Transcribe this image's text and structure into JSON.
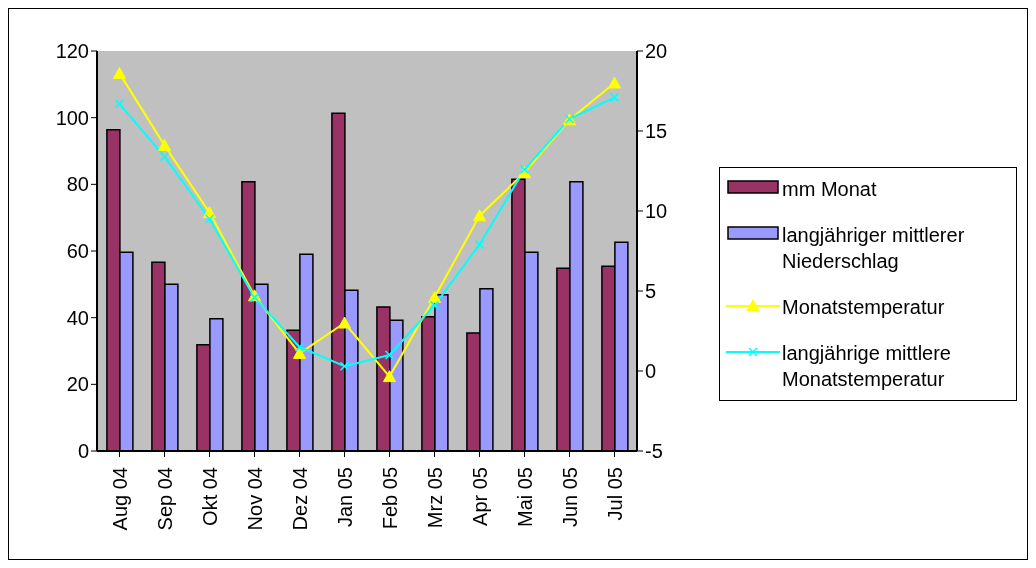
{
  "chart_data": {
    "type": "bar",
    "categories": [
      "Aug 04",
      "Sep 04",
      "Okt 04",
      "Nov 04",
      "Dez 04",
      "Jan 05",
      "Feb 05",
      "Mrz 05",
      "Apr 05",
      "Mai 05",
      "Jun 05",
      "Jul 05"
    ],
    "series": [
      {
        "name": "mm Monat",
        "color": "#993366",
        "values": [
          96.4,
          56.6,
          31.9,
          80.8,
          36.2,
          101.3,
          43.2,
          40.3,
          35.4,
          81.5,
          54.8,
          55.4
        ]
      },
      {
        "name": "langjähriger mittlerer Niederschlag",
        "color": "#9999ff",
        "values": [
          59.6,
          50,
          39.7,
          50,
          59,
          48.2,
          39.2,
          46.9,
          48.7,
          59.6,
          80.8,
          62.6
        ]
      },
      {
        "name": "Monatstemperatur",
        "type": "line",
        "axis": "y2",
        "marker": "triangle",
        "color": "#ffff00",
        "values": [
          18.6,
          14.1,
          9.9,
          4.7,
          1.1,
          3.0,
          -0.35,
          4.6,
          9.7,
          12.4,
          15.7,
          18.0
        ]
      },
      {
        "name": "langjährige mittlere Monatstemperatur",
        "type": "line",
        "axis": "y2",
        "marker": "cross",
        "color": "#00ffff",
        "values": [
          16.7,
          13.4,
          9.5,
          4.6,
          1.5,
          0.3,
          1.0,
          4.1,
          7.9,
          12.6,
          15.75,
          17.1
        ]
      }
    ],
    "ylim": [
      0,
      120
    ],
    "yticks": [
      0,
      20,
      40,
      60,
      80,
      100,
      120
    ],
    "y2lim": [
      -5,
      20
    ],
    "y2ticks": [
      -5,
      0,
      5,
      10,
      15,
      20
    ],
    "grid": false,
    "legend": "right"
  }
}
